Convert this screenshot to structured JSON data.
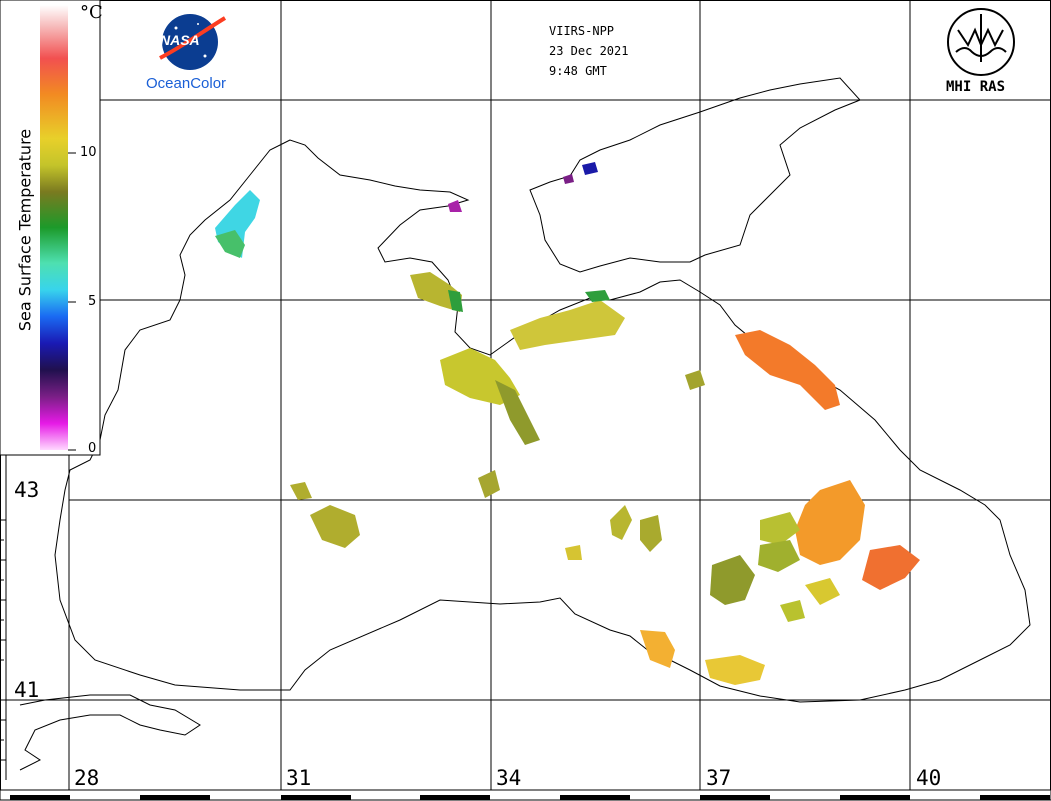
{
  "header": {
    "sensor": "VIIRS-NPP",
    "date": "23 Dec 2021",
    "time": "9:48 GMT"
  },
  "logos": {
    "nasa": "NASA",
    "ocean_color": "OceanColor",
    "mhi": "MHI RAS"
  },
  "legend": {
    "title": "Sea Surface Temperature",
    "unit": "°C",
    "ticks": [
      "10",
      "5",
      "0"
    ]
  },
  "grid": {
    "latitudes": [
      "43",
      "41"
    ],
    "longitudes": [
      "28",
      "31",
      "34",
      "37",
      "40"
    ]
  },
  "colors": {
    "coast": "#000000",
    "grid": "#000000",
    "sst_warm": "#f37a2a",
    "sst_mid": "#c8c72e",
    "sst_olive": "#8f9a2c",
    "sst_green": "#2e9e3c",
    "sst_cyan": "#39d7e8"
  }
}
